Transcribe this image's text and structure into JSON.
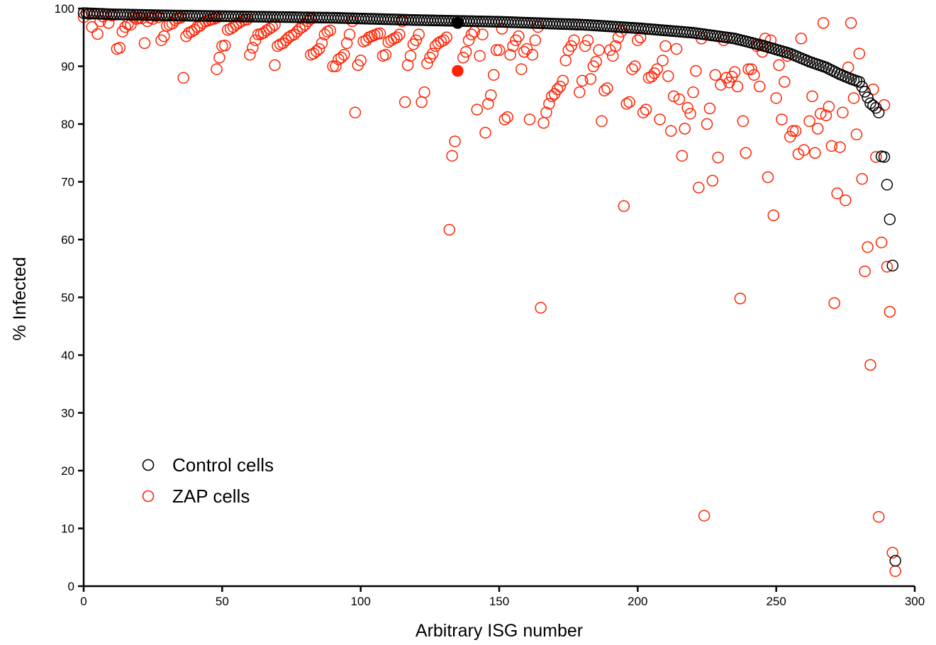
{
  "chart_data": {
    "type": "scatter",
    "xlabel": "Arbitrary ISG number",
    "ylabel": "% Infected",
    "xlim": [
      0,
      300
    ],
    "ylim": [
      0,
      100
    ],
    "xticks": [
      0,
      50,
      100,
      150,
      200,
      250,
      300
    ],
    "yticks": [
      0,
      10,
      20,
      30,
      40,
      50,
      60,
      70,
      80,
      90,
      100
    ],
    "grid": false,
    "legend_position": "bottom-left",
    "colors": {
      "control": "#000000",
      "zap": "#ff2200"
    },
    "series": [
      {
        "name": "Control cells",
        "marker": "open-circle",
        "decline_points": [
          [
            0,
            99.2
          ],
          [
            10,
            99.0
          ],
          [
            30,
            98.8
          ],
          [
            60,
            98.6
          ],
          [
            90,
            98.4
          ],
          [
            120,
            98.0
          ],
          [
            150,
            97.7
          ],
          [
            180,
            97.2
          ],
          [
            200,
            96.6
          ],
          [
            220,
            95.8
          ],
          [
            235,
            94.8
          ],
          [
            245,
            93.6
          ],
          [
            255,
            92.2
          ],
          [
            262,
            90.8
          ],
          [
            268,
            89.8
          ],
          [
            273,
            88.6
          ],
          [
            277,
            87.8
          ],
          [
            280,
            87.3
          ],
          [
            282,
            85.6
          ],
          [
            284,
            83.6
          ],
          [
            286,
            82.8
          ],
          [
            287,
            82.0
          ],
          [
            288,
            74.4
          ],
          [
            289,
            74.3
          ],
          [
            290,
            69.5
          ],
          [
            291,
            63.5
          ],
          [
            292,
            55.5
          ],
          [
            293,
            4.4
          ]
        ],
        "count": 293,
        "highlighted": {
          "x": 135,
          "y": 97.5
        }
      },
      {
        "name": "ZAP cells",
        "marker": "open-circle",
        "highlighted": {
          "x": 135,
          "y": 89.2
        },
        "points": [
          [
            0,
            98.5
          ],
          [
            2,
            99.0
          ],
          [
            3,
            96.8
          ],
          [
            4,
            99.1
          ],
          [
            5,
            95.6
          ],
          [
            6,
            97.8
          ],
          [
            7,
            98.6
          ],
          [
            8,
            99.0
          ],
          [
            9,
            97.5
          ],
          [
            10,
            98.8
          ],
          [
            11,
            98.9
          ],
          [
            12,
            93.0
          ],
          [
            13,
            93.2
          ],
          [
            14,
            96.0
          ],
          [
            15,
            96.8
          ],
          [
            16,
            97.3
          ],
          [
            17,
            97.2
          ],
          [
            18,
            98.5
          ],
          [
            19,
            98.2
          ],
          [
            20,
            98.4
          ],
          [
            21,
            98.3
          ],
          [
            22,
            94.0
          ],
          [
            23,
            97.8
          ],
          [
            24,
            98.4
          ],
          [
            25,
            98.2
          ],
          [
            26,
            98.7
          ],
          [
            27,
            98.5
          ],
          [
            28,
            94.5
          ],
          [
            29,
            95.2
          ],
          [
            30,
            97.0
          ],
          [
            31,
            97.2
          ],
          [
            32,
            97.4
          ],
          [
            33,
            98.0
          ],
          [
            34,
            98.3
          ],
          [
            35,
            98.4
          ],
          [
            36,
            88.0
          ],
          [
            37,
            95.2
          ],
          [
            38,
            95.8
          ],
          [
            39,
            96.0
          ],
          [
            40,
            96.3
          ],
          [
            41,
            96.8
          ],
          [
            42,
            97.0
          ],
          [
            43,
            97.5
          ],
          [
            44,
            97.8
          ],
          [
            45,
            97.9
          ],
          [
            46,
            98.1
          ],
          [
            47,
            98.2
          ],
          [
            48,
            98.4
          ],
          [
            48,
            89.5
          ],
          [
            49,
            91.5
          ],
          [
            50,
            93.5
          ],
          [
            51,
            93.6
          ],
          [
            52,
            96.3
          ],
          [
            53,
            96.5
          ],
          [
            54,
            96.8
          ],
          [
            55,
            97.2
          ],
          [
            56,
            97.5
          ],
          [
            57,
            97.8
          ],
          [
            58,
            98.0
          ],
          [
            59,
            98.1
          ],
          [
            60,
            92.0
          ],
          [
            61,
            93.2
          ],
          [
            62,
            94.5
          ],
          [
            63,
            95.5
          ],
          [
            64,
            95.6
          ],
          [
            65,
            95.8
          ],
          [
            66,
            96.2
          ],
          [
            67,
            96.5
          ],
          [
            68,
            96.8
          ],
          [
            69,
            97.2
          ],
          [
            69,
            90.2
          ],
          [
            70,
            93.5
          ],
          [
            71,
            93.8
          ],
          [
            72,
            94.0
          ],
          [
            73,
            94.5
          ],
          [
            74,
            95.0
          ],
          [
            75,
            95.3
          ],
          [
            76,
            95.5
          ],
          [
            77,
            96.0
          ],
          [
            78,
            96.5
          ],
          [
            79,
            96.8
          ],
          [
            80,
            97.2
          ],
          [
            81,
            97.8
          ],
          [
            82,
            98.2
          ],
          [
            82,
            92.0
          ],
          [
            83,
            92.2
          ],
          [
            84,
            92.6
          ],
          [
            85,
            93.0
          ],
          [
            86,
            94.0
          ],
          [
            87,
            95.5
          ],
          [
            88,
            96.0
          ],
          [
            89,
            96.2
          ],
          [
            90,
            90.0
          ],
          [
            91,
            90.0
          ],
          [
            92,
            91.2
          ],
          [
            93,
            91.5
          ],
          [
            94,
            92.0
          ],
          [
            95,
            94.0
          ],
          [
            96,
            95.5
          ],
          [
            97,
            97.8
          ],
          [
            98,
            82.0
          ],
          [
            99,
            90.2
          ],
          [
            100,
            91.0
          ],
          [
            101,
            94.3
          ],
          [
            102,
            94.5
          ],
          [
            103,
            95.0
          ],
          [
            104,
            95.2
          ],
          [
            105,
            95.4
          ],
          [
            106,
            95.6
          ],
          [
            107,
            95.7
          ],
          [
            108,
            91.8
          ],
          [
            109,
            92.0
          ],
          [
            110,
            94.2
          ],
          [
            111,
            94.5
          ],
          [
            112,
            94.8
          ],
          [
            113,
            95.0
          ],
          [
            114,
            95.5
          ],
          [
            115,
            97.8
          ],
          [
            116,
            83.8
          ],
          [
            117,
            90.2
          ],
          [
            118,
            91.8
          ],
          [
            119,
            93.8
          ],
          [
            120,
            94.5
          ],
          [
            121,
            95.5
          ],
          [
            122,
            83.8
          ],
          [
            123,
            85.5
          ],
          [
            124,
            90.5
          ],
          [
            125,
            91.5
          ],
          [
            126,
            92.2
          ],
          [
            127,
            93.5
          ],
          [
            128,
            94.0
          ],
          [
            129,
            94.3
          ],
          [
            130,
            94.5
          ],
          [
            131,
            95.0
          ],
          [
            132,
            61.7
          ],
          [
            133,
            74.5
          ],
          [
            134,
            77.0
          ],
          [
            137,
            91.5
          ],
          [
            138,
            92.5
          ],
          [
            139,
            94.5
          ],
          [
            140,
            95.5
          ],
          [
            141,
            96.0
          ],
          [
            142,
            82.5
          ],
          [
            143,
            91.8
          ],
          [
            144,
            95.5
          ],
          [
            145,
            78.5
          ],
          [
            146,
            83.5
          ],
          [
            147,
            85.0
          ],
          [
            148,
            88.5
          ],
          [
            149,
            92.8
          ],
          [
            150,
            92.8
          ],
          [
            151,
            96.5
          ],
          [
            152,
            80.8
          ],
          [
            153,
            81.2
          ],
          [
            154,
            92.0
          ],
          [
            155,
            93.5
          ],
          [
            156,
            94.5
          ],
          [
            157,
            95.2
          ],
          [
            158,
            89.5
          ],
          [
            159,
            92.5
          ],
          [
            160,
            93.0
          ],
          [
            161,
            80.8
          ],
          [
            162,
            92.0
          ],
          [
            163,
            94.5
          ],
          [
            164,
            96.8
          ],
          [
            165,
            48.2
          ],
          [
            166,
            80.2
          ],
          [
            167,
            82.0
          ],
          [
            168,
            83.5
          ],
          [
            169,
            84.8
          ],
          [
            170,
            85.2
          ],
          [
            171,
            86.0
          ],
          [
            172,
            86.5
          ],
          [
            173,
            87.5
          ],
          [
            174,
            91.0
          ],
          [
            175,
            92.8
          ],
          [
            176,
            93.5
          ],
          [
            177,
            94.5
          ],
          [
            178,
            97.2
          ],
          [
            179,
            85.5
          ],
          [
            180,
            87.5
          ],
          [
            181,
            93.5
          ],
          [
            182,
            94.5
          ],
          [
            183,
            87.8
          ],
          [
            184,
            90.0
          ],
          [
            185,
            90.8
          ],
          [
            186,
            92.8
          ],
          [
            187,
            80.5
          ],
          [
            188,
            85.8
          ],
          [
            189,
            86.2
          ],
          [
            190,
            92.8
          ],
          [
            191,
            91.8
          ],
          [
            192,
            93.5
          ],
          [
            193,
            95.0
          ],
          [
            194,
            96.0
          ],
          [
            195,
            65.8
          ],
          [
            196,
            83.5
          ],
          [
            197,
            83.8
          ],
          [
            198,
            89.5
          ],
          [
            199,
            90.0
          ],
          [
            200,
            94.5
          ],
          [
            201,
            95.0
          ],
          [
            202,
            82.0
          ],
          [
            203,
            82.5
          ],
          [
            204,
            88.0
          ],
          [
            205,
            88.2
          ],
          [
            206,
            88.8
          ],
          [
            207,
            89.5
          ],
          [
            208,
            80.8
          ],
          [
            209,
            91.0
          ],
          [
            210,
            93.5
          ],
          [
            211,
            88.3
          ],
          [
            212,
            78.8
          ],
          [
            213,
            84.8
          ],
          [
            214,
            93.0
          ],
          [
            215,
            84.3
          ],
          [
            216,
            74.5
          ],
          [
            217,
            79.2
          ],
          [
            218,
            82.8
          ],
          [
            219,
            81.8
          ],
          [
            220,
            85.5
          ],
          [
            221,
            89.2
          ],
          [
            222,
            69.0
          ],
          [
            223,
            94.8
          ],
          [
            224,
            12.2
          ],
          [
            225,
            80.0
          ],
          [
            226,
            82.7
          ],
          [
            227,
            70.2
          ],
          [
            228,
            88.5
          ],
          [
            229,
            74.2
          ],
          [
            230,
            86.8
          ],
          [
            231,
            94.5
          ],
          [
            232,
            88.0
          ],
          [
            233,
            87.2
          ],
          [
            234,
            88.2
          ],
          [
            235,
            89.0
          ],
          [
            236,
            86.5
          ],
          [
            237,
            49.8
          ],
          [
            238,
            80.5
          ],
          [
            239,
            75.0
          ],
          [
            240,
            89.5
          ],
          [
            241,
            89.5
          ],
          [
            242,
            88.5
          ],
          [
            243,
            93.5
          ],
          [
            244,
            86.5
          ],
          [
            245,
            92.5
          ],
          [
            246,
            94.8
          ],
          [
            247,
            70.8
          ],
          [
            248,
            94.5
          ],
          [
            249,
            64.2
          ],
          [
            250,
            84.5
          ],
          [
            251,
            90.2
          ],
          [
            252,
            80.8
          ],
          [
            253,
            87.3
          ],
          [
            254,
            91.8
          ],
          [
            255,
            77.8
          ],
          [
            256,
            78.8
          ],
          [
            257,
            78.8
          ],
          [
            258,
            74.8
          ],
          [
            259,
            94.8
          ],
          [
            260,
            75.5
          ],
          [
            261,
            91.0
          ],
          [
            262,
            80.5
          ],
          [
            263,
            84.8
          ],
          [
            264,
            75.0
          ],
          [
            265,
            79.2
          ],
          [
            266,
            81.8
          ],
          [
            267,
            97.5
          ],
          [
            268,
            81.5
          ],
          [
            269,
            83.0
          ],
          [
            270,
            76.2
          ],
          [
            271,
            49.0
          ],
          [
            272,
            68.0
          ],
          [
            273,
            76.0
          ],
          [
            274,
            82.0
          ],
          [
            275,
            66.8
          ],
          [
            276,
            89.8
          ],
          [
            277,
            97.5
          ],
          [
            278,
            84.5
          ],
          [
            279,
            78.2
          ],
          [
            280,
            92.2
          ],
          [
            281,
            70.5
          ],
          [
            282,
            54.5
          ],
          [
            283,
            58.7
          ],
          [
            284,
            38.3
          ],
          [
            285,
            86.0
          ],
          [
            286,
            74.3
          ],
          [
            287,
            12.0
          ],
          [
            288,
            59.5
          ],
          [
            289,
            83.3
          ],
          [
            290,
            55.3
          ],
          [
            291,
            47.5
          ],
          [
            292,
            5.8
          ],
          [
            293,
            2.6
          ]
        ]
      }
    ]
  }
}
